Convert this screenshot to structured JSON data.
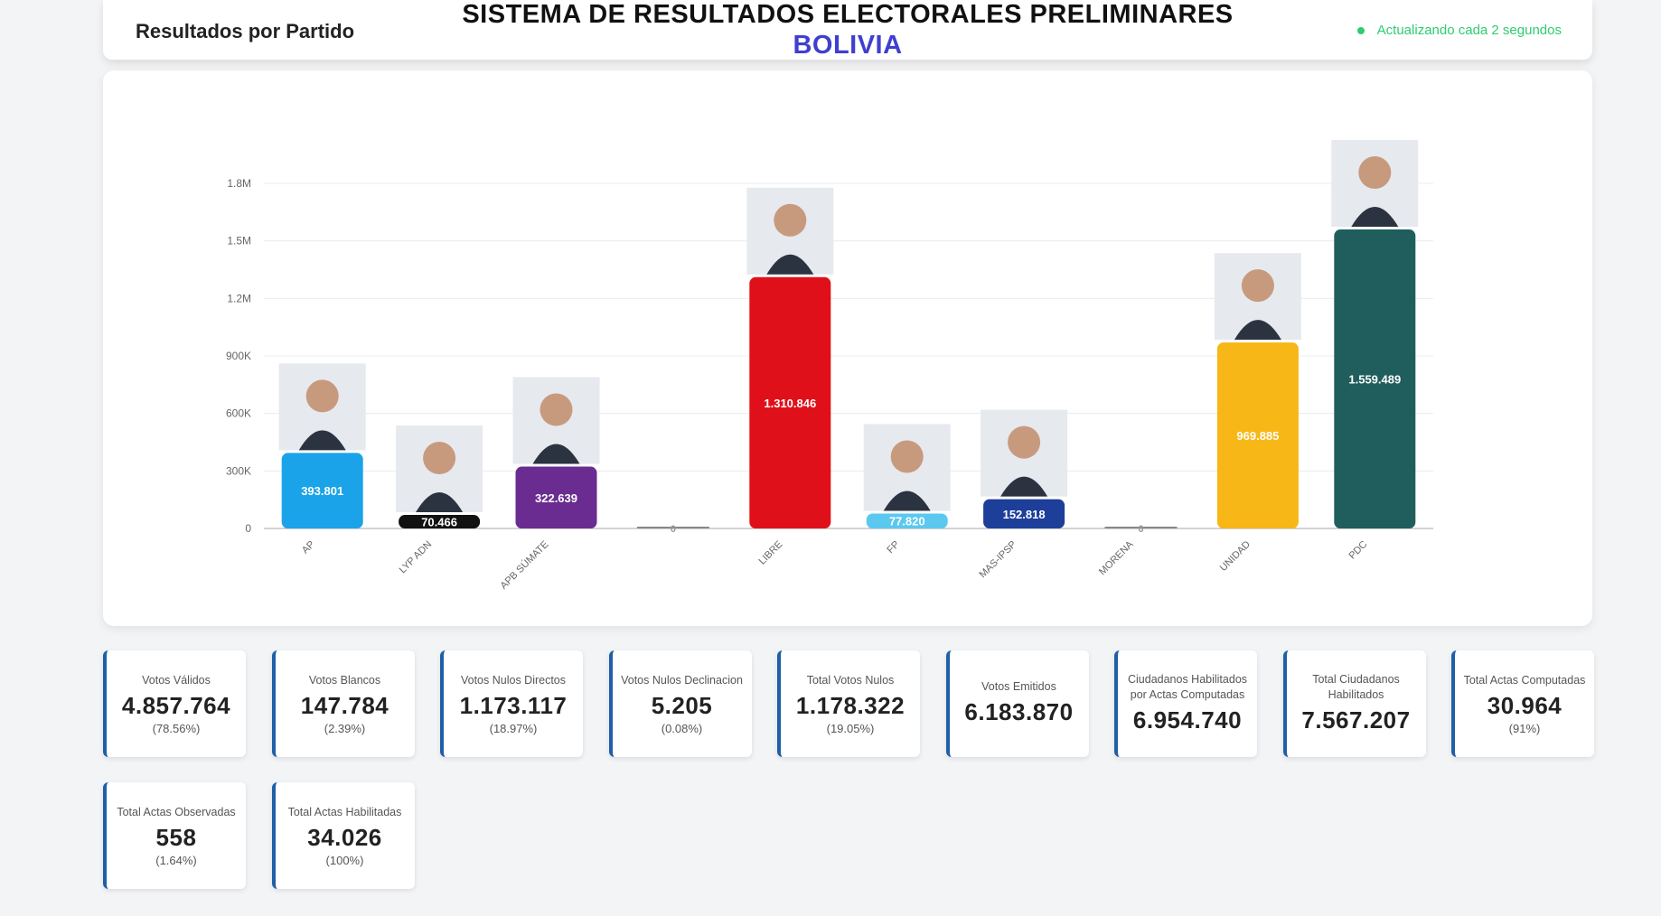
{
  "header": {
    "section_label": "Resultados por Partido",
    "title": "SISTEMA DE RESULTADOS ELECTORALES PRELIMINARES",
    "country": "BOLIVIA",
    "status": "Actualizando cada 2 segundos"
  },
  "chart_data": {
    "type": "bar",
    "categories": [
      "AP",
      "LYP ADN",
      "APB SÚMATE",
      "",
      "LIBRE",
      "FP",
      "MAS-IPSP",
      "MORENA",
      "UNIDAD",
      "PDC"
    ],
    "values": [
      393801,
      70466,
      322639,
      0,
      1310846,
      77820,
      152818,
      0,
      969885,
      1559489
    ],
    "data_labels": [
      "393.801",
      "70.466",
      "322.639",
      "0",
      "1.310.846",
      "77.820",
      "152.818",
      "0",
      "969.885",
      "1.559.489"
    ],
    "colors": [
      "#1aa3e8",
      "#111111",
      "#6a2c91",
      "#999999",
      "#e0101a",
      "#5bc8f0",
      "#1d3f9a",
      "#555555",
      "#f7b717",
      "#1f5e5c"
    ],
    "has_photo": [
      true,
      true,
      true,
      false,
      true,
      true,
      true,
      false,
      true,
      true
    ],
    "yticks": [
      0,
      300000,
      600000,
      900000,
      1200000,
      1500000,
      1800000
    ],
    "ytick_labels": [
      "0",
      "300K",
      "600K",
      "900K",
      "1.2M",
      "1.5M",
      "1.8M"
    ],
    "ylim": [
      0,
      1800000
    ],
    "grid": true
  },
  "cards": [
    {
      "label": "Votos Válidos",
      "value": "4.857.764",
      "pct": "(78.56%)"
    },
    {
      "label": "Votos Blancos",
      "value": "147.784",
      "pct": "(2.39%)"
    },
    {
      "label": "Votos Nulos Directos",
      "value": "1.173.117",
      "pct": "(18.97%)"
    },
    {
      "label": "Votos Nulos Declinacion",
      "value": "5.205",
      "pct": "(0.08%)"
    },
    {
      "label": "Total Votos Nulos",
      "value": "1.178.322",
      "pct": "(19.05%)"
    },
    {
      "label": "Votos Emitidos",
      "value": "6.183.870",
      "pct": ""
    },
    {
      "label": "Ciudadanos Habilitados por Actas Computadas",
      "value": "6.954.740",
      "pct": ""
    },
    {
      "label": "Total Ciudadanos Habilitados",
      "value": "7.567.207",
      "pct": ""
    },
    {
      "label": "Total Actas Computadas",
      "value": "30.964",
      "pct": "(91%)"
    },
    {
      "label": "Total Actas Observadas",
      "value": "558",
      "pct": "(1.64%)"
    },
    {
      "label": "Total Actas Habilitadas",
      "value": "34.026",
      "pct": "(100%)"
    }
  ]
}
